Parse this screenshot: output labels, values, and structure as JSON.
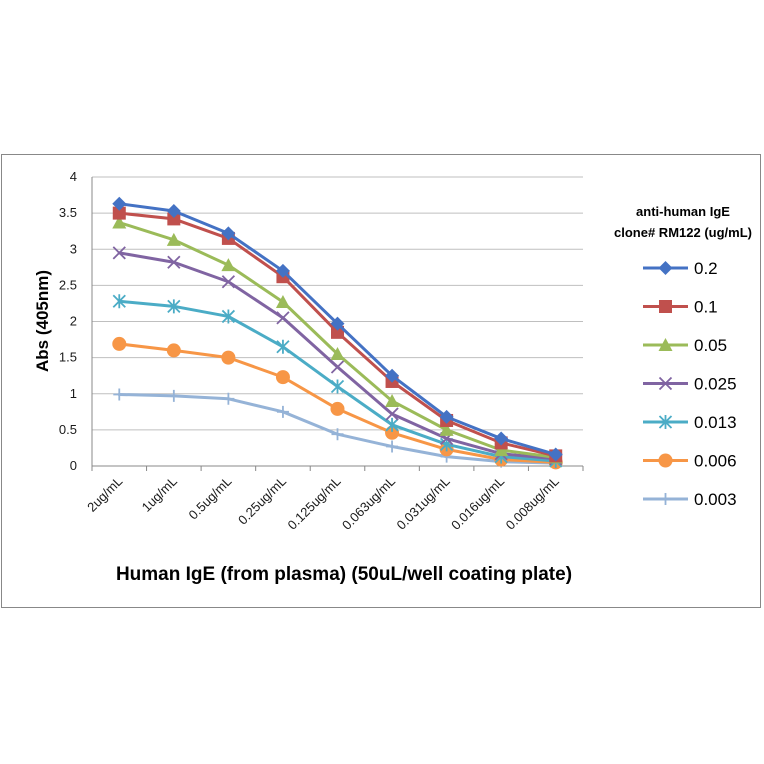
{
  "chart_data": {
    "type": "line",
    "title": "",
    "xlabel": "Human IgE (from plasma) (50uL/well coating plate)",
    "ylabel": "Abs (405nm)",
    "ylim": [
      0,
      4
    ],
    "yticks": [
      "0",
      "0.5",
      "1",
      "1.5",
      "2",
      "2.5",
      "3",
      "3.5",
      "4"
    ],
    "ytick_values": [
      0,
      0.5,
      1,
      1.5,
      2,
      2.5,
      3,
      3.5,
      4
    ],
    "grid": true,
    "categories": [
      "2ug/mL",
      "1ug/mL",
      "0.5ug/mL",
      "0.25ug/mL",
      "0.125ug/mL",
      "0.063ug/mL",
      "0.031ug/mL",
      "0.016ug/mL",
      "0.008ug/mL"
    ],
    "legend": {
      "title_line1": "anti-human IgE",
      "title_line2": "clone# RM122 (ug/mL)",
      "placement": "right"
    },
    "series": [
      {
        "name": "0.2",
        "color": "#4472C4",
        "marker": "diamond",
        "values": [
          3.63,
          3.53,
          3.22,
          2.7,
          1.97,
          1.25,
          0.68,
          0.38,
          0.16
        ]
      },
      {
        "name": "0.1",
        "color": "#C0504D",
        "marker": "square",
        "values": [
          3.5,
          3.42,
          3.15,
          2.62,
          1.85,
          1.17,
          0.63,
          0.32,
          0.14
        ]
      },
      {
        "name": "0.05",
        "color": "#9BBB59",
        "marker": "triangle",
        "values": [
          3.37,
          3.13,
          2.78,
          2.27,
          1.55,
          0.9,
          0.5,
          0.22,
          0.12
        ]
      },
      {
        "name": "0.025",
        "color": "#8064A2",
        "marker": "x",
        "values": [
          2.95,
          2.82,
          2.55,
          2.05,
          1.37,
          0.72,
          0.38,
          0.17,
          0.1
        ]
      },
      {
        "name": "0.013",
        "color": "#4BACC6",
        "marker": "star",
        "values": [
          2.28,
          2.21,
          2.07,
          1.65,
          1.1,
          0.57,
          0.3,
          0.13,
          0.07
        ]
      },
      {
        "name": "0.006",
        "color": "#F79646",
        "marker": "circle",
        "values": [
          1.69,
          1.6,
          1.5,
          1.23,
          0.79,
          0.46,
          0.23,
          0.09,
          0.05
        ]
      },
      {
        "name": "0.003",
        "color": "#95B3D7",
        "marker": "plus",
        "values": [
          0.99,
          0.97,
          0.93,
          0.75,
          0.44,
          0.27,
          0.13,
          0.06,
          0.04
        ]
      }
    ]
  }
}
